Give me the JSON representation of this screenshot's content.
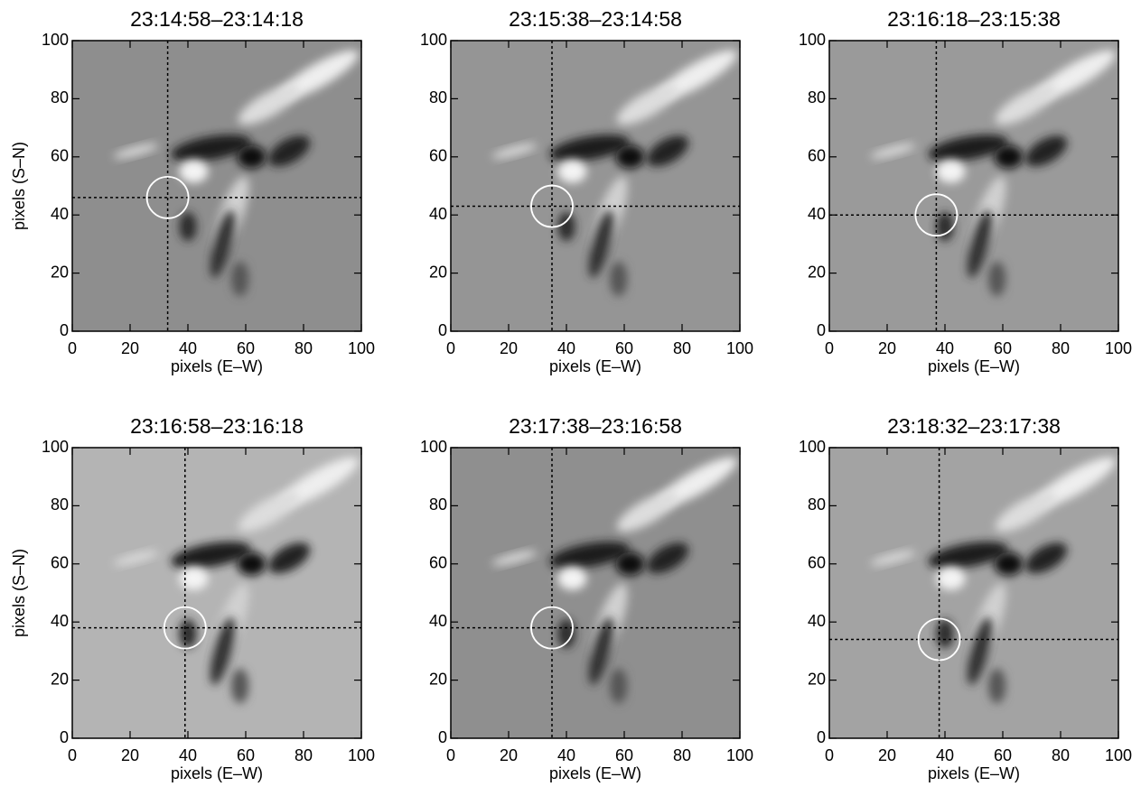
{
  "chart_data": [
    {
      "type": "image",
      "title": "23:14:58–23:14:18",
      "xlabel": "pixels (E–W)",
      "ylabel": "pixels (S–N)",
      "xlim": [
        0,
        100
      ],
      "ylim": [
        0,
        100
      ],
      "xticks": [
        0,
        20,
        40,
        60,
        80,
        100
      ],
      "yticks": [
        0,
        20,
        40,
        60,
        80,
        100
      ],
      "crosshair": {
        "x": 33,
        "y": 46
      },
      "background": "#8e8e8e"
    },
    {
      "type": "image",
      "title": "23:15:38–23:14:58",
      "xlabel": "pixels (E–W)",
      "xlim": [
        0,
        100
      ],
      "ylim": [
        0,
        100
      ],
      "xticks": [
        0,
        20,
        40,
        60,
        80,
        100
      ],
      "yticks": [
        0,
        20,
        40,
        60,
        80,
        100
      ],
      "crosshair": {
        "x": 35,
        "y": 43
      },
      "background": "#959595"
    },
    {
      "type": "image",
      "title": "23:16:18–23:15:38",
      "xlabel": "pixels (E–W)",
      "xlim": [
        0,
        100
      ],
      "ylim": [
        0,
        100
      ],
      "xticks": [
        0,
        20,
        40,
        60,
        80,
        100
      ],
      "yticks": [
        0,
        20,
        40,
        60,
        80,
        100
      ],
      "crosshair": {
        "x": 37,
        "y": 40
      },
      "background": "#9a9a9a"
    },
    {
      "type": "image",
      "title": "23:16:58–23:16:18",
      "xlabel": "pixels (E–W)",
      "ylabel": "pixels (S–N)",
      "xlim": [
        0,
        100
      ],
      "ylim": [
        0,
        100
      ],
      "xticks": [
        0,
        20,
        40,
        60,
        80,
        100
      ],
      "yticks": [
        0,
        20,
        40,
        60,
        80,
        100
      ],
      "crosshair": {
        "x": 39,
        "y": 38
      },
      "background": "#b4b4b4"
    },
    {
      "type": "image",
      "title": "23:17:38–23:16:58",
      "xlabel": "pixels (E–W)",
      "xlim": [
        0,
        100
      ],
      "ylim": [
        0,
        100
      ],
      "xticks": [
        0,
        20,
        40,
        60,
        80,
        100
      ],
      "yticks": [
        0,
        20,
        40,
        60,
        80,
        100
      ],
      "crosshair": {
        "x": 35,
        "y": 38
      },
      "background": "#8f8f8f"
    },
    {
      "type": "image",
      "title": "23:18:32–23:17:38",
      "xlabel": "pixels (E–W)",
      "xlim": [
        0,
        100
      ],
      "ylim": [
        0,
        100
      ],
      "xticks": [
        0,
        20,
        40,
        60,
        80,
        100
      ],
      "yticks": [
        0,
        20,
        40,
        60,
        80,
        100
      ],
      "crosshair": {
        "x": 38,
        "y": 34
      },
      "background": "#a3a3a3"
    }
  ]
}
